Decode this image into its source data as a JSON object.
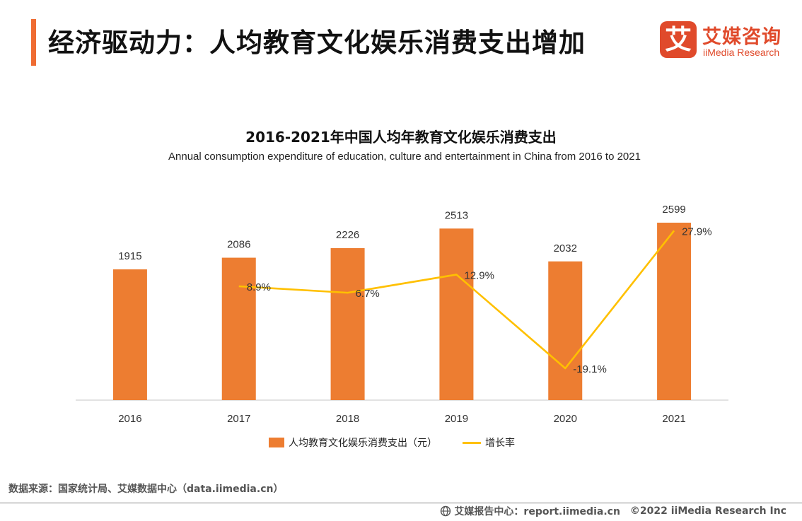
{
  "header": {
    "title": "经济驱动力：人均教育文化娱乐消费支出增加",
    "accent_color": "#ef6c33"
  },
  "logo": {
    "mark": "艾",
    "name_cn": "艾媒咨询",
    "name_en": "iiMedia Research",
    "color": "#e04a2b"
  },
  "chart_data": {
    "type": "bar",
    "title": "2016-2021年中国人均年教育文化娱乐消费支出",
    "subtitle": "Annual consumption expenditure of education, culture and entertainment in China from 2016 to 2021",
    "categories": [
      "2016",
      "2017",
      "2018",
      "2019",
      "2020",
      "2021"
    ],
    "series": [
      {
        "name": "人均教育文化娱乐消费支出（元）",
        "type": "bar",
        "color": "#ed7d31",
        "values": [
          1915,
          2086,
          2226,
          2513,
          2032,
          2599
        ],
        "labels": [
          "1915",
          "2086",
          "2226",
          "2513",
          "2032",
          "2599"
        ]
      },
      {
        "name": "增长率",
        "type": "line",
        "color": "#ffc000",
        "values": [
          null,
          8.9,
          6.7,
          12.9,
          -19.1,
          27.9
        ],
        "labels": [
          "",
          "8.9%",
          "6.7%",
          "12.9%",
          "-19.1%",
          "27.9%"
        ]
      }
    ],
    "ylim": [
      0,
      2800
    ],
    "y2lim": [
      -25,
      50
    ],
    "grid": false,
    "legend": "bottom"
  },
  "source": {
    "text": "数据来源：国家统计局、艾媒数据中心（data.iimedia.cn）"
  },
  "footer": {
    "report_center": "艾媒报告中心：report.iimedia.cn",
    "copyright": "©2022 iiMedia Research Inc"
  }
}
